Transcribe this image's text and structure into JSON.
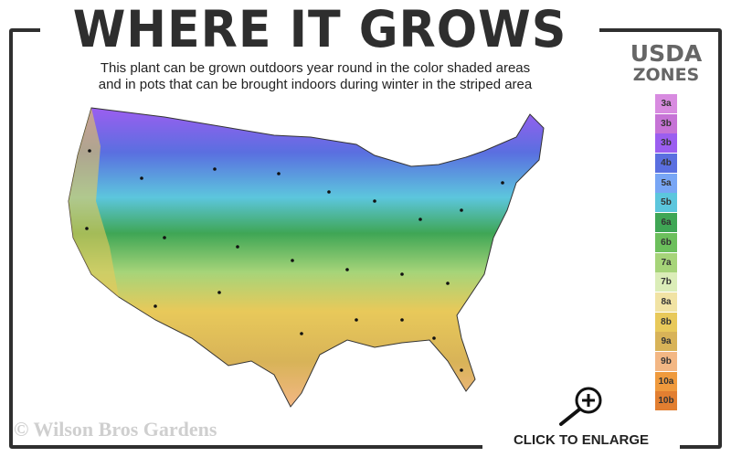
{
  "header": {
    "title": "WHERE IT GROWS",
    "subtitle_line1": "This plant can be grown outdoors year round in the color shaded areas",
    "subtitle_line2": "and in pots that can be brought indoors during winter in the striped area"
  },
  "legend": {
    "title_line1": "USDA",
    "title_line2": "ZONES",
    "zones": [
      {
        "label": "3a",
        "color": "#d88be0"
      },
      {
        "label": "3b",
        "color": "#c673d6"
      },
      {
        "label": "3b",
        "color": "#9b5ef0"
      },
      {
        "label": "4b",
        "color": "#5a6fe0"
      },
      {
        "label": "5a",
        "color": "#78a6f5"
      },
      {
        "label": "5b",
        "color": "#5cc6dd"
      },
      {
        "label": "6a",
        "color": "#3fa655"
      },
      {
        "label": "6b",
        "color": "#6cbf5c"
      },
      {
        "label": "7a",
        "color": "#a6d479"
      },
      {
        "label": "7b",
        "color": "#dbedb8"
      },
      {
        "label": "8a",
        "color": "#f1e3a4"
      },
      {
        "label": "8b",
        "color": "#e8c95a"
      },
      {
        "label": "9a",
        "color": "#d8b358"
      },
      {
        "label": "9b",
        "color": "#f3b784"
      },
      {
        "label": "10a",
        "color": "#ef9a3d"
      },
      {
        "label": "10b",
        "color": "#e27f31"
      }
    ]
  },
  "footer": {
    "watermark": "© Wilson Bros Gardens",
    "enlarge_label": "CLICK TO ENLARGE",
    "enlarge_icon": "magnifier-plus-icon"
  }
}
